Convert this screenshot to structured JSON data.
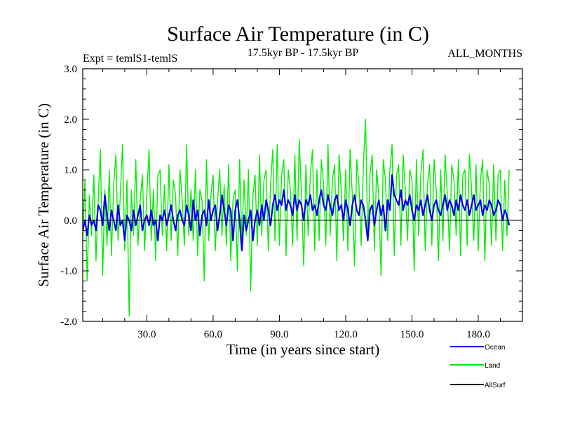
{
  "chart_data": {
    "type": "line",
    "title": "Surface Air Temperature (in C)",
    "subtitle_left": "Expt = temlS1-temlS",
    "subtitle_center": "17.5kyr BP - 17.5kyr BP",
    "subtitle_right": "ALL_MONTHS",
    "xlabel": "Time (in years since start)",
    "ylabel": "Surface Air Temperature (in C)",
    "xlim": [
      1,
      200
    ],
    "ylim": [
      -2.0,
      3.0
    ],
    "x_ticks": [
      30,
      60,
      90,
      120,
      150,
      180
    ],
    "x_tick_labels": [
      "30.0",
      "60.0",
      "90.0",
      "120.0",
      "150.0",
      "180.0"
    ],
    "y_ticks": [
      -2,
      -1,
      0,
      1,
      2,
      3
    ],
    "y_tick_labels": [
      "-2.0",
      "-1.0",
      "0.0",
      "1.0",
      "2.0",
      "3.0"
    ],
    "zero_line": 0,
    "series": [
      {
        "name": "Land",
        "color": "#00ee00",
        "x_start": 1,
        "x_step": 1,
        "values": [
          -0.4,
          0.8,
          -1.2,
          0.5,
          -0.3,
          0.9,
          -0.8,
          0.4,
          1.4,
          -1.1,
          0.6,
          -0.5,
          1.0,
          -0.7,
          0.7,
          1.3,
          -0.4,
          0.5,
          1.5,
          -0.6,
          0.8,
          -1.9,
          0.6,
          -0.3,
          1.2,
          -0.5,
          0.4,
          0.9,
          -0.6,
          0.5,
          1.4,
          -0.4,
          0.6,
          -0.8,
          0.9,
          1.0,
          -0.3,
          0.7,
          -0.6,
          1.1,
          -0.4,
          0.8,
          0.5,
          -0.7,
          1.0,
          0.4,
          -0.5,
          1.5,
          -0.3,
          0.6,
          -0.4,
          1.0,
          -0.7,
          0.6,
          0.4,
          -1.2,
          1.2,
          -0.4,
          0.5,
          0.9,
          -0.6,
          0.4,
          1.0,
          -0.3,
          0.7,
          -0.5,
          1.1,
          -0.8,
          0.4,
          0.6,
          -1.0,
          1.2,
          -0.4,
          0.8,
          -0.3,
          1.0,
          -1.4,
          0.5,
          0.9,
          -0.5,
          1.3,
          -0.3,
          0.8,
          1.0,
          -0.6,
          0.7,
          1.4,
          -0.4,
          1.5,
          -0.5,
          0.9,
          1.2,
          -0.7,
          1.0,
          0.6,
          -0.5,
          1.3,
          -0.4,
          1.6,
          0.5,
          -0.9,
          1.1,
          -0.3,
          0.9,
          1.4,
          -0.6,
          1.0,
          -0.4,
          1.2,
          0.7,
          -0.5,
          1.5,
          -0.3,
          0.8,
          1.1,
          -0.8,
          1.3,
          0.6,
          -0.4,
          1.0,
          -0.6,
          1.4,
          0.5,
          -0.9,
          1.2,
          0.7,
          -0.5,
          1.1,
          2.0,
          -0.4,
          0.9,
          1.3,
          -0.6,
          1.0,
          0.5,
          -1.1,
          1.2,
          0.8,
          -0.4,
          1.0,
          1.5,
          -0.7,
          0.9,
          1.1,
          -0.5,
          1.3,
          0.6,
          -0.4,
          1.0,
          0.8,
          -1.0,
          1.2,
          -0.3,
          0.9,
          1.4,
          -0.6,
          0.7,
          1.1,
          -0.5,
          1.2,
          0.6,
          -0.8,
          1.0,
          -0.4,
          1.3,
          0.5,
          -0.6,
          1.1,
          0.8,
          -0.3,
          1.2,
          -0.7,
          0.9,
          1.0,
          -0.5,
          1.3,
          0.6,
          -0.4,
          1.1,
          -0.6,
          0.8,
          1.2,
          -0.8,
          1.0,
          0.7,
          -0.5,
          1.1,
          -0.4,
          0.9,
          1.0,
          -0.6,
          0.8,
          -0.3,
          1.0
        ]
      },
      {
        "name": "Ocean",
        "color": "#0000ee",
        "x_start": 1,
        "x_step": 1,
        "values": [
          -0.2,
          0.0,
          -0.3,
          0.1,
          -0.1,
          0.0,
          -0.2,
          0.3,
          0.2,
          -0.1,
          0.5,
          0.1,
          -0.2,
          0.2,
          0.0,
          -0.2,
          0.3,
          -0.1,
          0.0,
          -0.4,
          0.1,
          0.0,
          -0.2,
          0.2,
          -0.1,
          0.1,
          0.3,
          -0.2,
          0.0,
          0.1,
          -0.1,
          0.2,
          -0.1,
          0.0,
          -0.4,
          0.1,
          0.0,
          0.2,
          -0.1,
          0.1,
          0.3,
          0.0,
          -0.2,
          0.1,
          0.2,
          0.0,
          -0.1,
          0.3,
          0.1,
          -0.2,
          0.4,
          0.0,
          0.2,
          -0.3,
          0.1,
          0.2,
          -0.1,
          0.4,
          0.0,
          0.2,
          0.3,
          -0.2,
          0.1,
          0.5,
          0.2,
          -0.1,
          0.3,
          0.2,
          -0.4,
          0.2,
          0.4,
          0.0,
          -0.6,
          0.1,
          -0.2,
          0.0,
          0.2,
          -0.4,
          0.0,
          0.2,
          -0.1,
          0.3,
          0.0,
          0.4,
          0.2,
          -0.1,
          0.3,
          0.5,
          0.2,
          0.4,
          0.3,
          0.6,
          0.2,
          0.4,
          0.3,
          0.1,
          0.5,
          0.2,
          0.4,
          0.3,
          0.0,
          0.4,
          0.3,
          0.5,
          0.2,
          0.3,
          0.1,
          0.4,
          0.6,
          0.3,
          0.2,
          0.5,
          0.3,
          0.1,
          0.4,
          0.5,
          0.2,
          0.3,
          0.0,
          0.4,
          0.2,
          -0.1,
          0.3,
          0.5,
          0.2,
          0.1,
          0.4,
          0.3,
          0.0,
          -0.4,
          0.2,
          0.3,
          -0.1,
          0.2,
          0.4,
          0.1,
          0.3,
          -0.2,
          0.4,
          0.2,
          0.9,
          0.5,
          0.4,
          0.3,
          0.6,
          0.2,
          0.4,
          0.3,
          0.5,
          0.2,
          0.0,
          0.3,
          0.2,
          0.4,
          0.1,
          0.3,
          0.5,
          0.2,
          0.0,
          0.3,
          0.4,
          0.2,
          0.1,
          0.3,
          0.5,
          0.2,
          0.4,
          0.3,
          0.1,
          0.4,
          0.2,
          0.5,
          0.3,
          0.2,
          0.4,
          0.1,
          0.3,
          0.5,
          0.2,
          0.3,
          0.4,
          0.1,
          0.3,
          0.2,
          0.4,
          0.3,
          0.1,
          0.2,
          0.4,
          0.3,
          0.0,
          0.2,
          0.1,
          -0.1
        ]
      },
      {
        "name": "AllSurf",
        "color": "#000000",
        "values": []
      }
    ],
    "legend": {
      "position": "bottom-right",
      "entries": [
        "Ocean",
        "Land",
        "AllSurf"
      ]
    }
  }
}
